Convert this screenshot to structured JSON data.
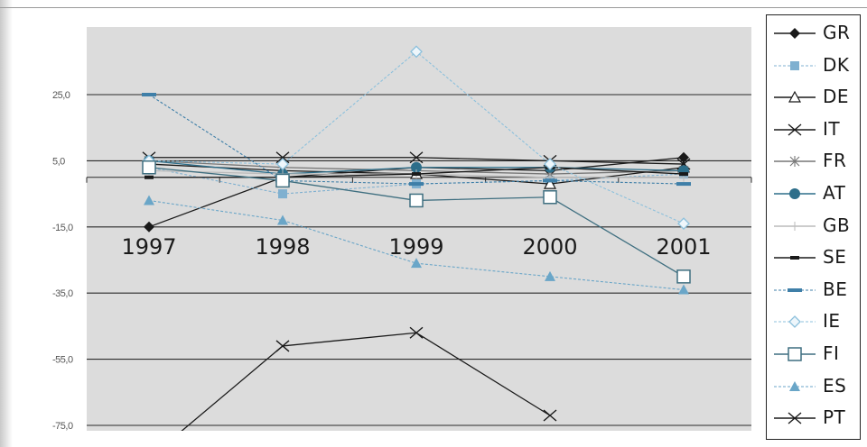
{
  "chart_data": {
    "type": "line",
    "title": "",
    "xlabel": "",
    "ylabel": "",
    "categories": [
      "1997",
      "1998",
      "1999",
      "2000",
      "2001"
    ],
    "ylim": [
      -75,
      35
    ],
    "y_ticks": [
      "25,0",
      "5,0",
      "-15,0",
      "-35,0",
      "-55,0",
      "-75,0"
    ],
    "grid": "horizontal",
    "legend_position": "right",
    "series": [
      {
        "name": "GR",
        "values": [
          -15,
          0,
          3,
          2,
          6
        ],
        "color": "#1a1a1a",
        "marker": "diamond-filled",
        "dash": false
      },
      {
        "name": "DK",
        "values": [
          3,
          -5,
          -2,
          -1,
          1
        ],
        "color": "#7fb0d0",
        "marker": "square-light",
        "dash": true
      },
      {
        "name": "DE",
        "values": [
          4,
          2,
          1,
          -2,
          3
        ],
        "color": "#1a1a1a",
        "marker": "triangle-open",
        "dash": false
      },
      {
        "name": "IT",
        "values": [
          6,
          6,
          6,
          5,
          4
        ],
        "color": "#1a1a1a",
        "marker": "x",
        "dash": false
      },
      {
        "name": "FR",
        "values": [
          5,
          3,
          2,
          1,
          2
        ],
        "color": "#777777",
        "marker": "star",
        "dash": false
      },
      {
        "name": "AT",
        "values": [
          5,
          1,
          3,
          3,
          2
        ],
        "color": "#2d6e8a",
        "marker": "circle-filled",
        "dash": false
      },
      {
        "name": "GB",
        "values": [
          2,
          1,
          1,
          0,
          0
        ],
        "color": "#bbbbbb",
        "marker": "plus",
        "dash": false
      },
      {
        "name": "SE",
        "values": [
          0,
          0,
          1,
          3,
          1
        ],
        "color": "#1a1a1a",
        "marker": "dash",
        "dash": false
      },
      {
        "name": "BE",
        "values": [
          25,
          -1,
          -2,
          -1,
          -2
        ],
        "color": "#3f7fa8",
        "marker": "bar",
        "dash": true
      },
      {
        "name": "IE",
        "values": [
          5,
          4,
          38,
          4,
          -14
        ],
        "color": "#8cc0dc",
        "marker": "diamond-open",
        "dash": true
      },
      {
        "name": "FI",
        "values": [
          3,
          -1,
          -7,
          -6,
          -30
        ],
        "color": "#3f6f80",
        "marker": "square-open",
        "dash": false
      },
      {
        "name": "ES",
        "values": [
          -7,
          -13,
          -26,
          -30,
          -34
        ],
        "color": "#6aa6c8",
        "marker": "triangle-filled",
        "dash": true
      },
      {
        "name": "PT",
        "values": [
          -85,
          -51,
          -47,
          -72,
          null
        ],
        "color": "#1a1a1a",
        "marker": "x",
        "dash": false
      }
    ]
  }
}
